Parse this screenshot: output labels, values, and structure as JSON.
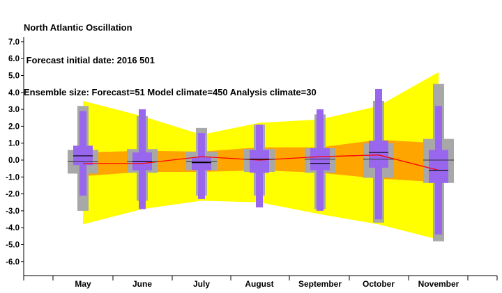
{
  "header": {
    "title": "North Atlantic Oscillation",
    "subtitle": " Forecast initial date: 2016 501",
    "ensemble": "Ensemble size: Forecast=51 Model climate=450 Analysis climate=30"
  },
  "colors": {
    "climate_band_outer": "#ffff00",
    "climate_band_inner": "#ffa500",
    "analysis_box": "#a8a8a8",
    "forecast_box": "#9966ee",
    "median_line": "#000000",
    "forecast_mean_line": "#ff0000",
    "axis": "#000000"
  },
  "chart_data": {
    "type": "box",
    "categories": [
      "May",
      "June",
      "July",
      "August",
      "September",
      "October",
      "November"
    ],
    "ylim": [
      -6.8,
      7.2
    ],
    "yticks": [
      7.0,
      6.0,
      5.0,
      4.0,
      3.0,
      2.0,
      1.0,
      0.0,
      -1.0,
      -2.0,
      -3.0,
      -4.0,
      -5.0,
      -6.0
    ],
    "ytick_labels": [
      "7.0",
      "6.0",
      "5.0",
      "4.0",
      "3.0",
      "2.0",
      "1.0",
      "0.0",
      "-1.0",
      "-2.0",
      "-3.0",
      "-4.0",
      "-5.0",
      "-6.0"
    ],
    "model_climate_outer": {
      "upper": [
        3.5,
        2.6,
        1.5,
        2.2,
        2.4,
        3.2,
        5.2
      ],
      "lower": [
        -3.8,
        -2.9,
        -2.4,
        -2.5,
        -3.2,
        -3.8,
        -4.7
      ]
    },
    "model_climate_inner": {
      "upper": [
        0.45,
        0.55,
        0.5,
        0.75,
        0.75,
        1.2,
        1.0
      ],
      "lower": [
        -0.95,
        -0.7,
        -0.7,
        -0.6,
        -0.75,
        -1.1,
        -1.3
      ]
    },
    "analysis_climate": [
      {
        "min": -3.0,
        "q1": -0.8,
        "median": -0.1,
        "q3": 0.6,
        "max": 3.2
      },
      {
        "min": -2.4,
        "q1": -0.75,
        "median": -0.1,
        "q3": 0.65,
        "max": 2.6
      },
      {
        "min": -2.1,
        "q1": -0.6,
        "median": -0.1,
        "q3": 0.5,
        "max": 1.9
      },
      {
        "min": -2.1,
        "q1": -0.7,
        "median": 0.05,
        "q3": 0.65,
        "max": 2.1
      },
      {
        "min": -2.9,
        "q1": -0.75,
        "median": 0.05,
        "q3": 0.7,
        "max": 2.7
      },
      {
        "min": -3.7,
        "q1": -1.05,
        "median": 0.05,
        "q3": 1.0,
        "max": 3.5
      },
      {
        "min": -4.8,
        "q1": -1.35,
        "median": 0.0,
        "q3": 1.25,
        "max": 4.5
      }
    ],
    "forecast": [
      {
        "min": -2.1,
        "q1": -0.3,
        "median": 0.25,
        "q3": 0.85,
        "max": 2.9
      },
      {
        "min": -2.9,
        "q1": -0.6,
        "median": -0.1,
        "q3": 0.45,
        "max": 3.0
      },
      {
        "min": -2.3,
        "q1": -0.6,
        "median": -0.15,
        "q3": 0.15,
        "max": 1.6
      },
      {
        "min": -2.8,
        "q1": -0.75,
        "median": 0.05,
        "q3": 0.6,
        "max": 2.1
      },
      {
        "min": -3.0,
        "q1": -0.6,
        "median": -0.2,
        "q3": 0.7,
        "max": 3.0
      },
      {
        "min": -3.5,
        "q1": -0.45,
        "median": 0.45,
        "q3": 1.15,
        "max": 4.2
      },
      {
        "min": -4.4,
        "q1": -1.35,
        "median": -0.6,
        "q3": 0.6,
        "max": 3.2
      }
    ],
    "forecast_mean": [
      -0.2,
      -0.2,
      0.2,
      0.0,
      0.2,
      0.3,
      -0.6
    ],
    "grid": false
  }
}
